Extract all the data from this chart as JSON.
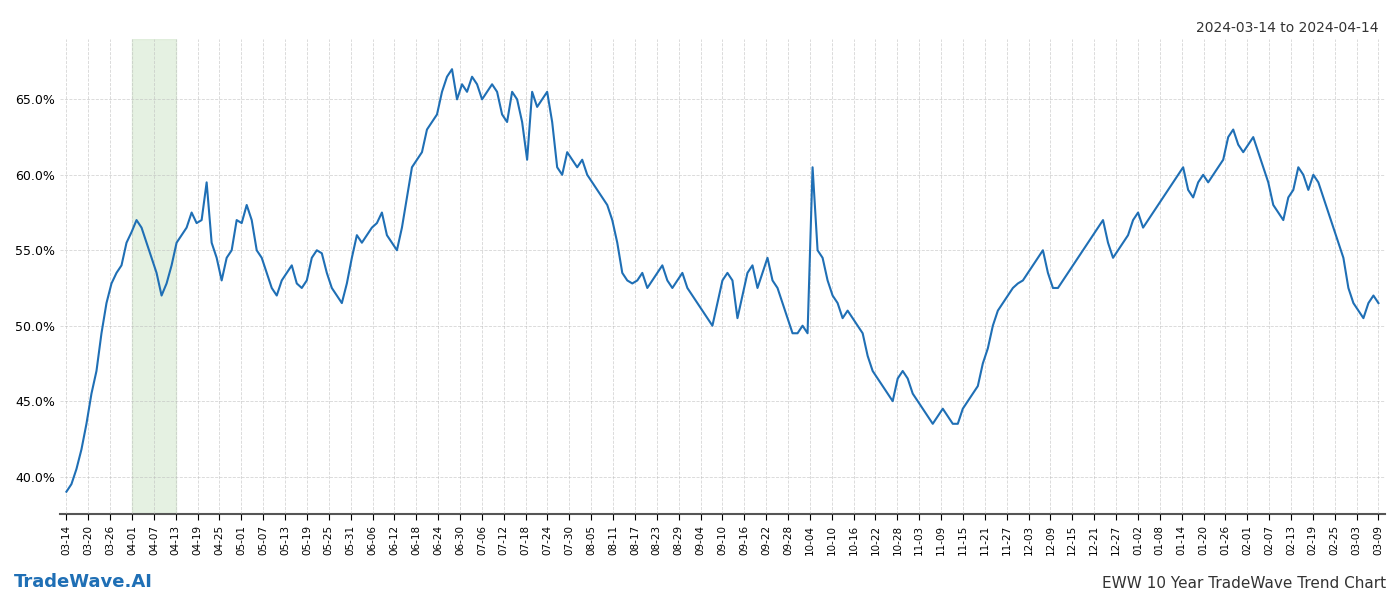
{
  "title_right": "2024-03-14 to 2024-04-14",
  "title_bottom_left": "TradeWave.AI",
  "title_bottom_right": "EWW 10 Year TradeWave Trend Chart",
  "x_labels": [
    "03-14",
    "03-20",
    "03-26",
    "04-01",
    "04-07",
    "04-13",
    "04-19",
    "04-25",
    "05-01",
    "05-07",
    "05-13",
    "05-19",
    "05-25",
    "05-31",
    "06-06",
    "06-12",
    "06-18",
    "06-24",
    "06-30",
    "07-06",
    "07-12",
    "07-18",
    "07-24",
    "07-30",
    "08-05",
    "08-11",
    "08-17",
    "08-23",
    "08-29",
    "09-04",
    "09-10",
    "09-16",
    "09-22",
    "09-28",
    "10-04",
    "10-10",
    "10-16",
    "10-22",
    "10-28",
    "11-03",
    "11-09",
    "11-15",
    "11-21",
    "11-27",
    "12-03",
    "12-09",
    "12-15",
    "12-21",
    "12-27",
    "01-02",
    "01-08",
    "01-14",
    "01-20",
    "01-26",
    "02-01",
    "02-07",
    "02-13",
    "02-19",
    "02-25",
    "03-03",
    "03-09"
  ],
  "y_values": [
    39.0,
    39.5,
    40.5,
    41.8,
    43.5,
    45.5,
    47.0,
    49.5,
    51.5,
    52.8,
    53.5,
    54.0,
    55.5,
    56.2,
    57.0,
    56.5,
    55.5,
    54.5,
    53.5,
    52.0,
    52.8,
    54.0,
    55.5,
    56.0,
    56.5,
    57.5,
    56.8,
    57.0,
    59.5,
    55.5,
    54.5,
    53.0,
    54.5,
    55.0,
    57.0,
    56.8,
    58.0,
    57.0,
    55.0,
    54.5,
    53.5,
    52.5,
    52.0,
    53.0,
    53.5,
    54.0,
    52.8,
    52.5,
    53.0,
    54.5,
    55.0,
    54.8,
    53.5,
    52.5,
    52.0,
    51.5,
    52.8,
    54.5,
    56.0,
    55.5,
    56.0,
    56.5,
    56.8,
    57.5,
    56.0,
    55.5,
    55.0,
    56.5,
    58.5,
    60.5,
    61.0,
    61.5,
    63.0,
    63.5,
    64.0,
    65.5,
    66.5,
    67.0,
    65.0,
    66.0,
    65.5,
    66.5,
    66.0,
    65.0,
    65.5,
    66.0,
    65.5,
    64.0,
    63.5,
    65.5,
    65.0,
    63.5,
    61.0,
    65.5,
    64.5,
    65.0,
    65.5,
    63.5,
    60.5,
    60.0,
    61.5,
    61.0,
    60.5,
    61.0,
    60.0,
    59.5,
    59.0,
    58.5,
    58.0,
    57.0,
    55.5,
    53.5,
    53.0,
    52.8,
    53.0,
    53.5,
    52.5,
    53.0,
    53.5,
    54.0,
    53.0,
    52.5,
    53.0,
    53.5,
    52.5,
    52.0,
    51.5,
    51.0,
    50.5,
    50.0,
    51.5,
    53.0,
    53.5,
    53.0,
    50.5,
    52.0,
    53.5,
    54.0,
    52.5,
    53.5,
    54.5,
    53.0,
    52.5,
    51.5,
    50.5,
    49.5,
    49.5,
    50.0,
    49.5,
    60.5,
    55.0,
    54.5,
    53.0,
    52.0,
    51.5,
    50.5,
    51.0,
    50.5,
    50.0,
    49.5,
    48.0,
    47.0,
    46.5,
    46.0,
    45.5,
    45.0,
    46.5,
    47.0,
    46.5,
    45.5,
    45.0,
    44.5,
    44.0,
    43.5,
    44.0,
    44.5,
    44.0,
    43.5,
    43.5,
    44.5,
    45.0,
    45.5,
    46.0,
    47.5,
    48.5,
    50.0,
    51.0,
    51.5,
    52.0,
    52.5,
    52.8,
    53.0,
    53.5,
    54.0,
    54.5,
    55.0,
    53.5,
    52.5,
    52.5,
    53.0,
    53.5,
    54.0,
    54.5,
    55.0,
    55.5,
    56.0,
    56.5,
    57.0,
    55.5,
    54.5,
    55.0,
    55.5,
    56.0,
    57.0,
    57.5,
    56.5,
    57.0,
    57.5,
    58.0,
    58.5,
    59.0,
    59.5,
    60.0,
    60.5,
    59.0,
    58.5,
    59.5,
    60.0,
    59.5,
    60.0,
    60.5,
    61.0,
    62.5,
    63.0,
    62.0,
    61.5,
    62.0,
    62.5,
    61.5,
    60.5,
    59.5,
    58.0,
    57.5,
    57.0,
    58.5,
    59.0,
    60.5,
    60.0,
    59.0,
    60.0,
    59.5,
    58.5,
    57.5,
    56.5,
    55.5,
    54.5,
    52.5,
    51.5,
    51.0,
    50.5,
    51.5,
    52.0,
    51.5
  ],
  "line_color": "#1f6fb5",
  "line_width": 1.5,
  "shade_start_label": "04-01",
  "shade_end_label": "04-13",
  "shade_color": "#d4e8d0",
  "shade_alpha": 0.6,
  "ylim": [
    37.5,
    69.0
  ],
  "yticks": [
    40.0,
    45.0,
    50.0,
    55.0,
    60.0,
    65.0
  ],
  "grid_color": "#bbbbbb",
  "grid_alpha": 0.6,
  "background_color": "#ffffff",
  "fig_width": 14.0,
  "fig_height": 6.0
}
